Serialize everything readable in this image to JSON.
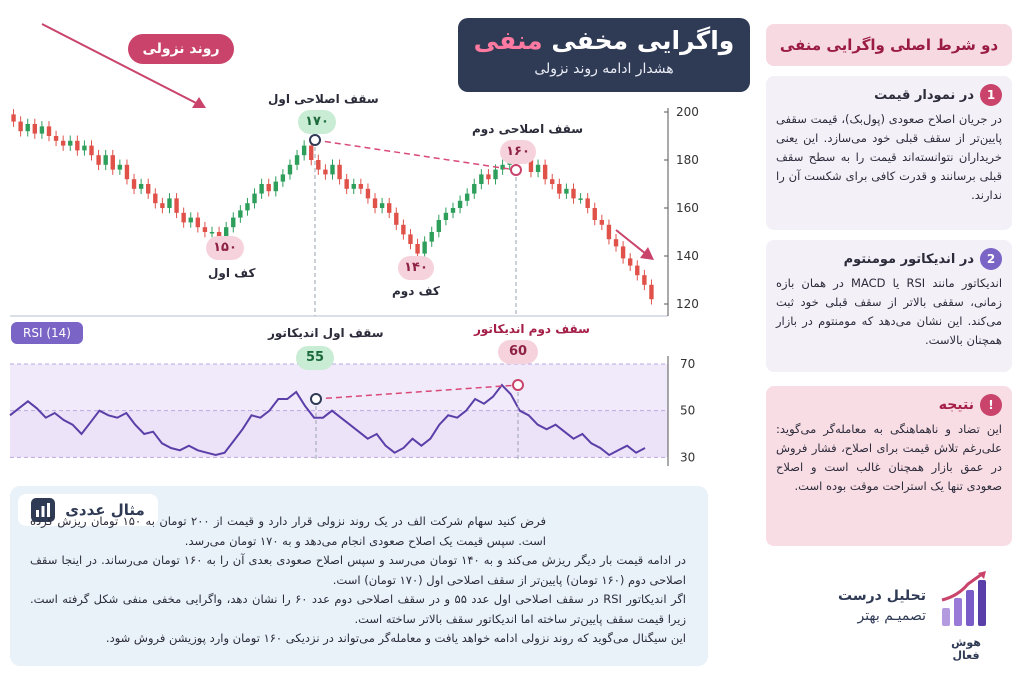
{
  "title": {
    "main_prefix": "واگرایی مخفی",
    "main_accent": "منفی",
    "subtitle": "هشدار ادامه روند نزولی"
  },
  "trend_badge": "روند نزولی",
  "price_labels": {
    "first_correction_top": "سقف اصلاحی اول",
    "first_top_value": "۱۷۰",
    "second_correction_top": "سقف اصلاحی دوم",
    "second_top_value": "۱۶۰",
    "first_bottom": "کف اول",
    "first_bottom_value": "۱۵۰",
    "second_bottom": "کف دوم",
    "second_bottom_value": "۱۴۰"
  },
  "rsi_labels": {
    "tag": "RSI (14)",
    "first_top": "سقف اول اندیکاتور",
    "first_top_value": "55",
    "second_top": "سقف دوم اندیکاتور",
    "second_top_value": "60"
  },
  "colors": {
    "bull": "#2e9e5b",
    "bear": "#e0514a",
    "accent": "#c9436a",
    "rsi_line": "#5b3fa8",
    "navy": "#2f3a55"
  },
  "chart_data": [
    {
      "type": "candlestick",
      "title": "",
      "ylim": [
        115,
        205
      ],
      "yticks": [
        120,
        140,
        160,
        180,
        200
      ],
      "annotations": [
        {
          "label": "سقف اصلاحی اول",
          "value": 170
        },
        {
          "label": "سقف اصلاحی دوم",
          "value": 160
        },
        {
          "label": "کف اول",
          "value": 150
        },
        {
          "label": "کف دوم",
          "value": 140
        }
      ],
      "closes": [
        196,
        192,
        195,
        191,
        194,
        190,
        188,
        186,
        188,
        184,
        186,
        182,
        178,
        182,
        176,
        178,
        172,
        168,
        170,
        166,
        162,
        160,
        164,
        158,
        154,
        156,
        152,
        150,
        150,
        147,
        152,
        156,
        159,
        162,
        166,
        170,
        167,
        171,
        174,
        178,
        182,
        186,
        180,
        176,
        174,
        178,
        172,
        168,
        170,
        168,
        164,
        160,
        162,
        158,
        153,
        149,
        145,
        141,
        146,
        150,
        155,
        158,
        160,
        163,
        166,
        170,
        174,
        172,
        176,
        178,
        180,
        183,
        181,
        175,
        178,
        172,
        170,
        166,
        168,
        164,
        164,
        160,
        155,
        153,
        147,
        144,
        139,
        136,
        132,
        128,
        122
      ]
    },
    {
      "type": "line",
      "title": "RSI (14)",
      "ylim": [
        28,
        76
      ],
      "yticks": [
        30,
        50,
        70
      ],
      "series": [
        {
          "name": "RSI (14)",
          "values": [
            48,
            51,
            54,
            51,
            47,
            49,
            46,
            44,
            40,
            45,
            50,
            48,
            47,
            49,
            44,
            40,
            41,
            36,
            34,
            33,
            35,
            33,
            32,
            31,
            32,
            37,
            42,
            48,
            47,
            50,
            55,
            55,
            58,
            52,
            47,
            47,
            50,
            47,
            44,
            41,
            38,
            40,
            35,
            32,
            34,
            38,
            35,
            38,
            44,
            48,
            47,
            50,
            55,
            53,
            56,
            61,
            57,
            50,
            48,
            44,
            42,
            44,
            41,
            38,
            40,
            36,
            34,
            31,
            33,
            35,
            32,
            34
          ]
        }
      ]
    }
  ],
  "right_panel": {
    "header": "دو شرط اصلی واگرایی منفی",
    "card1": {
      "num": "1",
      "title": "در نمودار قیمت",
      "body": "در جریان اصلاح صعودی (پول‌بک)، قیمت سقفی پایین‌تر از سقف قبلی خود می‌سازد. این یعنی خریداران نتوانسته‌اند قیمت را به سطح سقف قبلی برسانند و قدرت کافی برای شکست آن را ندارند."
    },
    "card2": {
      "num": "2",
      "title": "در اندیکاتور مومنتوم",
      "body": "اندیکاتور مانند RSI یا MACD در همان بازه زمانی، سقفی بالاتر از سقف قبلی خود ثبت می‌کند. این نشان می‌دهد که مومنتوم در بازار همچنان بالاست."
    },
    "card3": {
      "icon": "!",
      "title": "نتیجه",
      "body": "این تضاد و ناهماهنگی به معامله‌گر می‌گوید: علی‌رغم تلاش قیمت برای اصلاح، فشار فروش در عمق بازار همچنان غالب است و اصلاح صعودی تنها یک استراحت موقت بوده است."
    }
  },
  "example": {
    "title": "مثال عددی",
    "lines": [
      "فرض کنید سهام شرکت الف در یک روند نزولی قرار دارد و قیمت از ۲۰۰ تومان به ۱۵۰ تومان ریزش کرده است. سپس قیمت یک اصلاح صعودی انجام می‌دهد و به ۱۷۰ تومان می‌رسد.",
      "در ادامه قیمت بار دیگر ریزش می‌کند و به ۱۴۰ تومان می‌رسد و سپس اصلاح صعودی بعدی آن را به ۱۶۰ تومان می‌رساند. در اینجا سقف اصلاحی دوم (۱۶۰ تومان) پایین‌تر از سقف اصلاحی اول (۱۷۰ تومان) است.",
      "اگر اندیکاتور RSI در سقف اصلاحی اول عدد ۵۵ و در سقف اصلاحی دوم عدد ۶۰ را نشان دهد، واگرایی مخفی منفی شکل گرفته است. زیرا قیمت سقف پایین‌تر ساخته اما اندیکاتور سقف بالاتر ساخته است.",
      "این سیگنال می‌گوید که روند نزولی ادامه خواهد یافت و معامله‌گر می‌تواند در نزدیکی ۱۶۰ تومان وارد پوزیشن فروش شود."
    ]
  },
  "brand": {
    "tagline_1": "تحلیل درست",
    "tagline_2": "تصمیـم بهتر",
    "name": "هوش فعال"
  }
}
